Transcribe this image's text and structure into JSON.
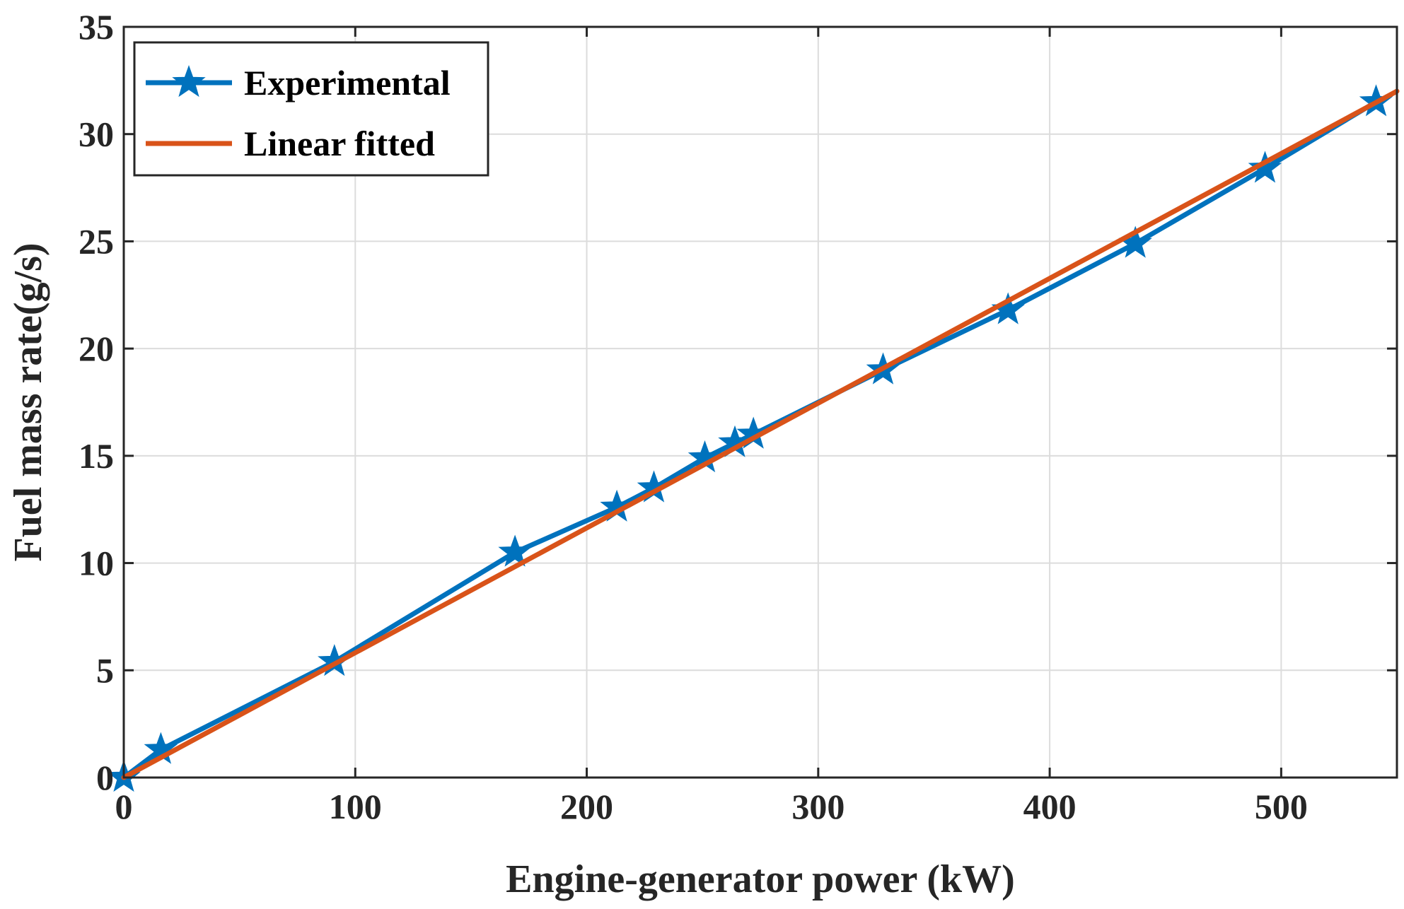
{
  "chart_data": {
    "type": "line",
    "title": "",
    "xlabel": "Engine-generator power (kW)",
    "ylabel": "Fuel mass rate(g/s)",
    "xlim": [
      0,
      550
    ],
    "ylim": [
      0,
      35
    ],
    "xticks": [
      0,
      100,
      200,
      300,
      400,
      500
    ],
    "yticks": [
      0,
      5,
      10,
      15,
      20,
      25,
      30,
      35
    ],
    "xtick_labels": [
      "0",
      "100",
      "200",
      "300",
      "400",
      "500"
    ],
    "ytick_labels": [
      "0",
      "5",
      "10",
      "15",
      "20",
      "25",
      "30",
      "35"
    ],
    "grid": true,
    "legend_position": "top-left",
    "series": [
      {
        "name": "Experimental",
        "color": "#0072BD",
        "marker": "star",
        "x": [
          0,
          16,
          91,
          169,
          213,
          229,
          251,
          264,
          272,
          328,
          382,
          437,
          493,
          541
        ],
        "y": [
          0,
          1.3,
          5.4,
          10.5,
          12.6,
          13.5,
          14.9,
          15.6,
          16.0,
          19.0,
          21.8,
          24.9,
          28.4,
          31.5
        ]
      },
      {
        "name": "Linear fitted",
        "color": "#D95319",
        "marker": "none",
        "x": [
          0,
          550
        ],
        "y": [
          0,
          32.0
        ]
      }
    ]
  }
}
